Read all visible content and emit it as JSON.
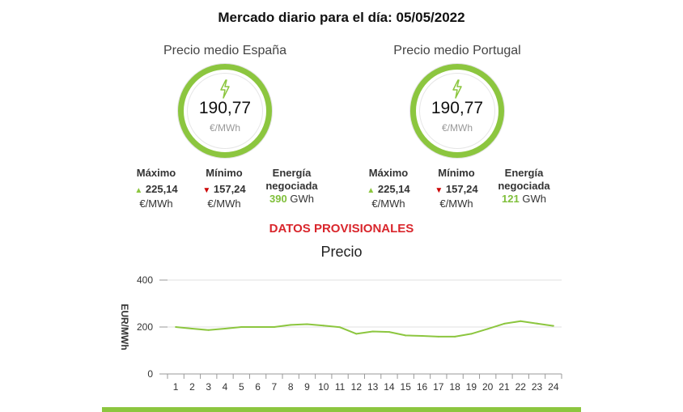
{
  "header": {
    "title": "Mercado diario para el día: 05/05/2022"
  },
  "colors": {
    "accent_green": "#8cc63f",
    "up": "#8cc63f",
    "down": "#cc0000",
    "provisional": "#d9262c",
    "line": "#8cc63f"
  },
  "markets": [
    {
      "title": "Precio medio España",
      "icon": "lightning-icon",
      "value": "190,77",
      "unit": "€/MWh",
      "max_label": "Máximo",
      "max_value": "225,14",
      "max_unit": "€/MWh",
      "min_label": "Mínimo",
      "min_value": "157,24",
      "min_unit": "€/MWh",
      "energy_label_1": "Energía",
      "energy_label_2": "negociada",
      "energy_value": "390",
      "energy_unit": "GWh"
    },
    {
      "title": "Precio medio Portugal",
      "icon": "lightning-icon",
      "value": "190,77",
      "unit": "€/MWh",
      "max_label": "Máximo",
      "max_value": "225,14",
      "max_unit": "€/MWh",
      "min_label": "Mínimo",
      "min_value": "157,24",
      "min_unit": "€/MWh",
      "energy_label_1": "Energía",
      "energy_label_2": "negociada",
      "energy_value": "121",
      "energy_unit": "GWh"
    }
  ],
  "notice": "DATOS PROVISIONALES",
  "chart_title": "Precio",
  "chart_data": {
    "type": "line",
    "title": "Precio",
    "xlabel": "",
    "ylabel": "EUR/MWh",
    "x": [
      1,
      2,
      3,
      4,
      5,
      6,
      7,
      8,
      9,
      10,
      11,
      12,
      13,
      14,
      15,
      16,
      17,
      18,
      19,
      20,
      21,
      22,
      23,
      24
    ],
    "series": [
      {
        "values": [
          200,
          193,
          187,
          193,
          200,
          200,
          200,
          209,
          212,
          206,
          199,
          171,
          181,
          179,
          164,
          162,
          159,
          159,
          171,
          192,
          214,
          225,
          215,
          205
        ]
      }
    ],
    "ylim": [
      0,
      400
    ],
    "yticks": [
      0,
      200,
      400
    ],
    "grid": true
  }
}
